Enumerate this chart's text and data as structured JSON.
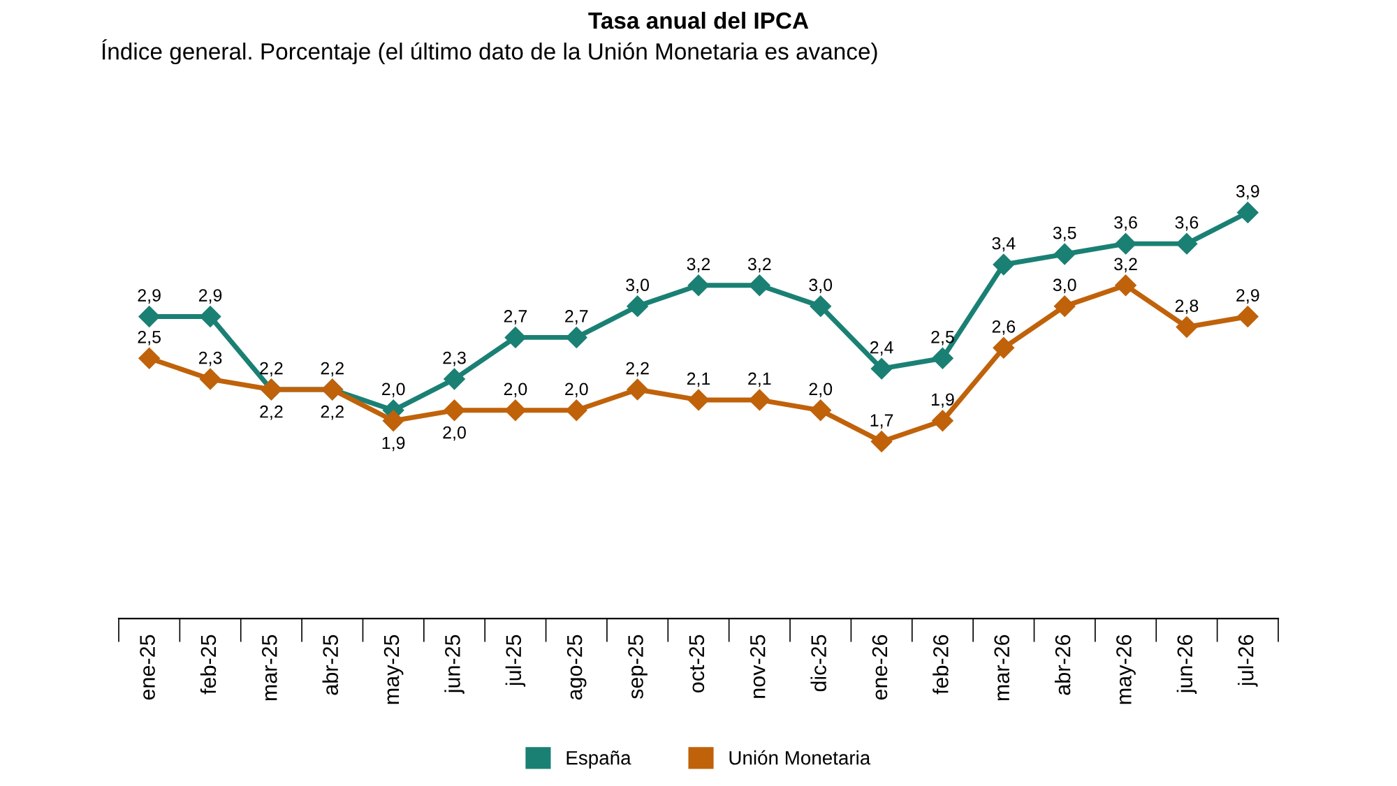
{
  "chart_data": {
    "type": "line",
    "title": "Tasa anual del IPCA",
    "subtitle": "Índice general. Porcentaje (el último dato de la Unión Monetaria es avance)",
    "categories": [
      "ene-25",
      "feb-25",
      "mar-25",
      "abr-25",
      "may-25",
      "jun-25",
      "jul-25",
      "ago-25",
      "sep-25",
      "oct-25",
      "nov-25",
      "dic-25",
      "ene-26",
      "feb-26",
      "mar-26",
      "abr-26",
      "may-26",
      "jun-26",
      "jul-26"
    ],
    "series": [
      {
        "name": "España",
        "color": "#1a8074",
        "values": [
          2.9,
          2.9,
          2.2,
          2.2,
          2.0,
          2.3,
          2.7,
          2.7,
          3.0,
          3.2,
          3.2,
          3.0,
          2.4,
          2.5,
          3.4,
          3.5,
          3.6,
          3.6,
          3.9
        ],
        "value_labels": [
          "2,9",
          "2,9",
          "2,2",
          "2,2",
          "2,0",
          "2,3",
          "2,7",
          "2,7",
          "3,0",
          "3,2",
          "3,2",
          "3,0",
          "2,4",
          "2,5",
          "3,4",
          "3,5",
          "3,6",
          "3,6",
          "3,9"
        ]
      },
      {
        "name": "Unión Monetaria",
        "color": "#c0620a",
        "values": [
          2.5,
          2.3,
          2.2,
          2.2,
          1.9,
          2.0,
          2.0,
          2.0,
          2.2,
          2.1,
          2.1,
          2.0,
          1.7,
          1.9,
          2.6,
          3.0,
          3.2,
          2.8,
          2.9
        ],
        "value_labels": [
          "2,5",
          "2,3",
          "2,2",
          "2,2",
          "1,9",
          "2,0",
          "2,0",
          "2,0",
          "2,2",
          "2,1",
          "2,1",
          "2,0",
          "1,7",
          "1,9",
          "2,6",
          "3,0",
          "3,2",
          "2,8",
          "2,9"
        ]
      }
    ],
    "marker": "diamond",
    "line_style": "solid",
    "legend": "bottom",
    "grid": false,
    "tick_labels": "x"
  }
}
